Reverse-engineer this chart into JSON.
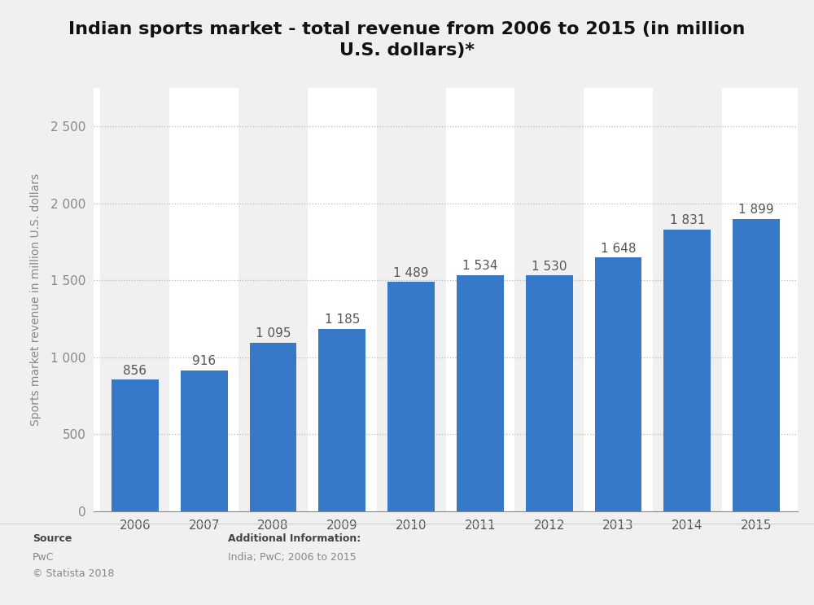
{
  "title": "Indian sports market - total revenue from 2006 to 2015 (in million\nU.S. dollars)*",
  "years": [
    "2006",
    "2007",
    "2008",
    "2009",
    "2010",
    "2011",
    "2012",
    "2013",
    "2014",
    "2015"
  ],
  "values": [
    856,
    916,
    1095,
    1185,
    1489,
    1534,
    1530,
    1648,
    1831,
    1899
  ],
  "bar_color": "#3579c8",
  "ylabel": "Sports market revenue in million U.S. dollars",
  "ylim": [
    0,
    2750
  ],
  "yticks": [
    0,
    500,
    1000,
    1500,
    2000,
    2500
  ],
  "ytick_labels": [
    "0",
    "500",
    "1 000",
    "1 500",
    "2 000",
    "2 500"
  ],
  "background_color": "#f0f0f0",
  "plot_bg_color": "#ffffff",
  "col_bg_odd": "#f0f0f0",
  "col_bg_even": "#ffffff",
  "title_fontsize": 16,
  "label_fontsize": 11,
  "tick_fontsize": 11,
  "ylabel_fontsize": 10,
  "footer_bg_color": "#f0f0f0"
}
